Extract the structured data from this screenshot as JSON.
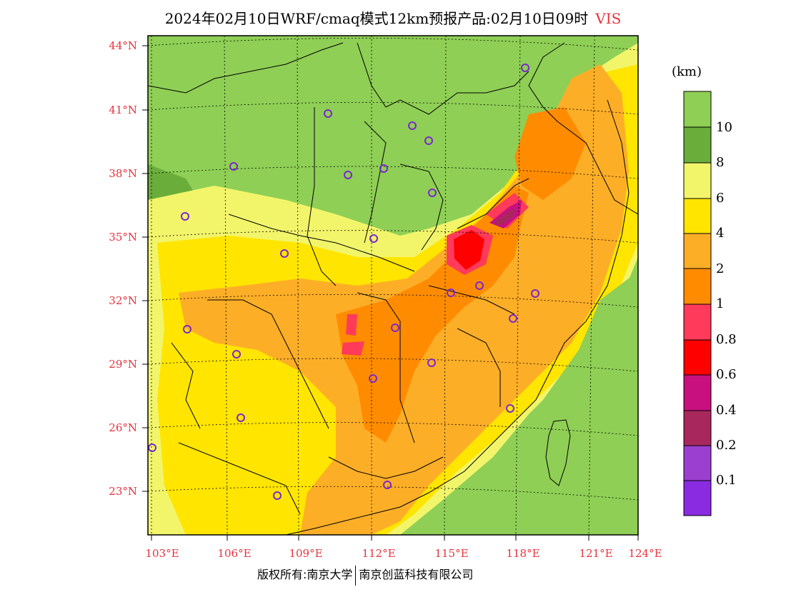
{
  "title": {
    "main": "2024年02月10日WRF/cmaq模式12km预报产品:02月10日09时",
    "variable": "VIS"
  },
  "axes": {
    "lat_labels": [
      "44°N",
      "41°N",
      "38°N",
      "35°N",
      "32°N",
      "29°N",
      "26°N",
      "23°N"
    ],
    "lon_labels": [
      "103°E",
      "106°E",
      "109°E",
      "112°E",
      "115°E",
      "118°E",
      "121°E",
      "124°E"
    ]
  },
  "colorbar": {
    "unit": "(km)",
    "labels": [
      "10",
      "8",
      "6",
      "4",
      "2",
      "1",
      "0.8",
      "0.6",
      "0.4",
      "0.2",
      "0.1"
    ],
    "colors": [
      "#8fcf55",
      "#6aad3a",
      "#f2f56a",
      "#ffe500",
      "#fdae27",
      "#ff8c00",
      "#ff3a5a",
      "#ff0000",
      "#c8107f",
      "#a8285d",
      "#9a3fcf",
      "#8a2be2"
    ]
  },
  "footer": {
    "left": "版权所有:南京大学",
    "right": "南京创蓝科技有限公司"
  },
  "city_markers_color": "#7a28cc"
}
